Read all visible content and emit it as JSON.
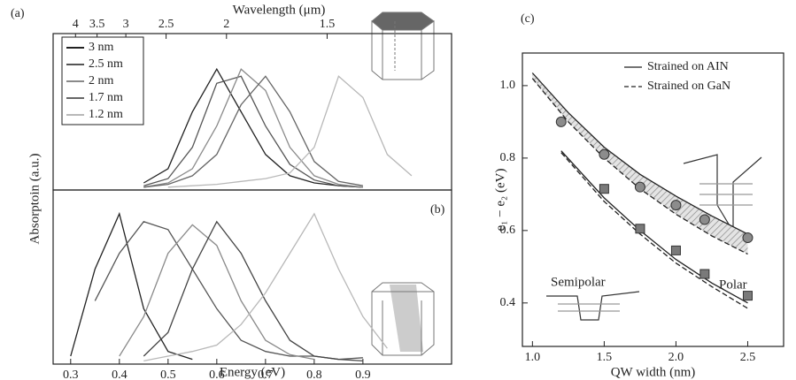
{
  "chart_data": [
    {
      "type": "line",
      "panel": "(a)",
      "x2label": "Wavelength (μm)",
      "ylabel": "Absorptoin (a.u.)",
      "xlim": [
        0.264,
        1.082
      ],
      "ylim": [
        0,
        1.1
      ],
      "x2ticks": [
        4,
        3.5,
        3,
        2.5,
        2,
        1.5
      ],
      "legend": "upper left",
      "x": [
        0.45,
        0.5,
        0.55,
        0.6,
        0.65,
        0.7,
        0.75,
        0.8,
        0.85,
        0.9,
        0.95,
        1.0
      ],
      "series": [
        {
          "name": "3 nm",
          "color": "#222222",
          "values": [
            0.05,
            0.15,
            0.55,
            0.85,
            0.55,
            0.25,
            0.1,
            0.05,
            0.03,
            0.02,
            null,
            null
          ]
        },
        {
          "name": "2.5 nm",
          "color": "#555555",
          "values": [
            0.03,
            0.08,
            0.3,
            0.75,
            0.8,
            0.45,
            0.18,
            0.07,
            0.03,
            0.02,
            null,
            null
          ]
        },
        {
          "name": "2 nm",
          "color": "#8a8a8a",
          "values": [
            0.02,
            0.05,
            0.15,
            0.45,
            0.85,
            0.7,
            0.3,
            0.1,
            0.04,
            0.02,
            null,
            null
          ]
        },
        {
          "name": "1.7 nm",
          "color": "#666666",
          "values": [
            0.02,
            0.04,
            0.1,
            0.25,
            0.6,
            0.8,
            0.55,
            0.2,
            0.06,
            0.03,
            null,
            null
          ]
        },
        {
          "name": "1.2 nm",
          "color": "#b8b8b8",
          "values": [
            null,
            0.02,
            0.03,
            0.04,
            0.06,
            0.08,
            0.12,
            0.3,
            0.8,
            0.65,
            0.25,
            0.1
          ]
        }
      ]
    },
    {
      "type": "line",
      "panel": "(b)",
      "xlabel": "Energy (eV)",
      "xlim": [
        0.264,
        1.082
      ],
      "ylim": [
        0,
        1.1
      ],
      "xticks": [
        0.3,
        0.4,
        0.5,
        0.6,
        0.7,
        0.8,
        0.9
      ],
      "x": [
        0.3,
        0.35,
        0.4,
        0.45,
        0.5,
        0.55,
        0.6,
        0.65,
        0.7,
        0.75,
        0.8,
        0.85,
        0.9,
        0.95
      ],
      "series": [
        {
          "color": "#222222",
          "values": [
            0.05,
            0.6,
            0.95,
            0.35,
            0.08,
            0.03,
            null,
            null,
            null,
            null,
            null,
            null,
            null,
            null
          ]
        },
        {
          "color": "#555555",
          "values": [
            null,
            0.4,
            0.7,
            0.9,
            0.85,
            0.6,
            0.35,
            0.15,
            0.08,
            0.05,
            0.05,
            0.03,
            0.04,
            null
          ]
        },
        {
          "color": "#8a8a8a",
          "values": [
            null,
            null,
            0.05,
            0.3,
            0.7,
            0.88,
            0.75,
            0.4,
            0.15,
            0.06,
            0.03,
            null,
            null,
            null
          ]
        },
        {
          "color": "#444444",
          "values": [
            null,
            null,
            null,
            0.05,
            0.2,
            0.6,
            0.9,
            0.7,
            0.4,
            0.15,
            0.05,
            0.03,
            0.02,
            null
          ]
        },
        {
          "color": "#b8b8b8",
          "values": [
            null,
            null,
            null,
            0.02,
            0.05,
            0.08,
            0.12,
            0.25,
            0.45,
            0.7,
            0.95,
            0.6,
            0.3,
            0.1
          ]
        }
      ]
    },
    {
      "type": "line",
      "panel": "(c)",
      "xlabel": "QW width (nm)",
      "ylabel": "e₁ − e₂ (eV)",
      "xlim": [
        0.93,
        2.75
      ],
      "ylim": [
        0.28,
        1.09
      ],
      "xticks": [
        {
          "value": 1.0,
          "label": "1.0"
        },
        1.5,
        {
          "value": 2.0,
          "label": "2.0"
        },
        2.5
      ],
      "yticks": [
        0.4,
        0.6,
        0.8,
        {
          "value": 1.0,
          "label": "1.0"
        }
      ],
      "legend": "upper right",
      "legend_entries": [
        {
          "label": "Strained on AIN",
          "dash": false
        },
        {
          "label": "Strained on GaN",
          "dash": true
        }
      ],
      "shaded": true,
      "annotations": [
        "Polar",
        "Semipolar"
      ],
      "series": [
        {
          "color": "#222222",
          "dash": false,
          "x": [
            1.0,
            1.25,
            1.5,
            1.75,
            2.0,
            2.25,
            2.5
          ],
          "values": [
            1.035,
            0.925,
            0.83,
            0.755,
            0.695,
            0.64,
            0.59
          ]
        },
        {
          "color": "#222222",
          "dash": true,
          "x": [
            1.0,
            1.25,
            1.5,
            1.75,
            2.0,
            2.25,
            2.5
          ],
          "values": [
            1.02,
            0.9,
            0.8,
            0.715,
            0.645,
            0.585,
            0.535
          ]
        },
        {
          "color": "#222222",
          "dash": false,
          "x": [
            1.2,
            1.5,
            1.75,
            2.0,
            2.25,
            2.5
          ],
          "values": [
            0.82,
            0.69,
            0.6,
            0.52,
            0.455,
            0.4
          ]
        },
        {
          "color": "#222222",
          "dash": true,
          "x": [
            1.2,
            1.5,
            1.75,
            2.0,
            2.25,
            2.5
          ],
          "values": [
            0.815,
            0.68,
            0.59,
            0.51,
            0.445,
            0.385
          ]
        }
      ],
      "markers": [
        {
          "shape": "circle",
          "color": "#8c8c8c",
          "x": [
            1.2,
            1.5,
            1.75,
            2.0,
            2.2,
            2.5
          ],
          "values": [
            0.9,
            0.81,
            0.72,
            0.67,
            0.63,
            0.58
          ]
        },
        {
          "shape": "square",
          "color": "#7a7a7a",
          "x": [
            1.5,
            1.75,
            2.0,
            2.2,
            2.5
          ],
          "values": [
            0.715,
            0.605,
            0.545,
            0.48,
            0.42
          ]
        }
      ]
    }
  ]
}
